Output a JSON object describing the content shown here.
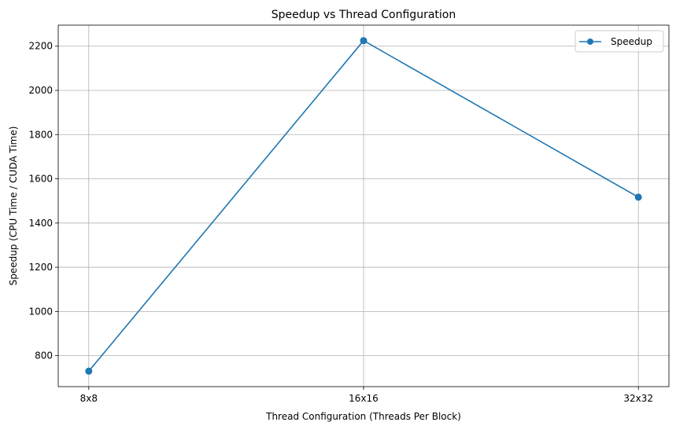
{
  "chart_data": {
    "type": "line",
    "title": "Speedup vs Thread Configuration",
    "xlabel": "Thread Configuration (Threads Per Block)",
    "ylabel": "Speedup (CPU Time / CUDA Time)",
    "categories": [
      "8x8",
      "16x16",
      "32x32"
    ],
    "series": [
      {
        "name": "Speedup",
        "values": [
          730,
          2225,
          1517
        ],
        "color": "#1f77b4",
        "marker": "circle"
      }
    ],
    "ylim": [
      660,
      2295
    ],
    "yticks": [
      800,
      1000,
      1200,
      1400,
      1600,
      1800,
      2000,
      2200
    ],
    "grid": true,
    "legend": "top-right"
  }
}
